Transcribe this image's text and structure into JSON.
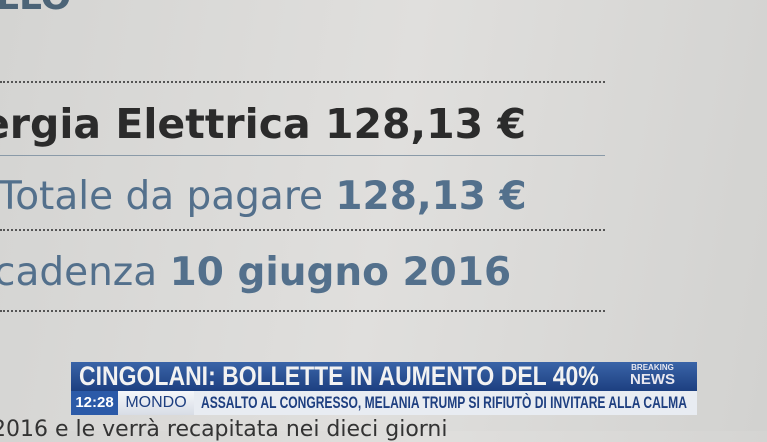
{
  "document": {
    "top_fragment": "LLO",
    "line1": {
      "label": "ergia Elettrica",
      "amount": "128,13 €"
    },
    "line2": {
      "label": "Totale da pagare",
      "amount": "128,13 €"
    },
    "line3": {
      "label": "cadenza",
      "date": "10 giugno 2016"
    },
    "bottom_fragment": "2016 e le verrà recapitata nei dieci giorni"
  },
  "ticker": {
    "headline": "CINGOLANI: BOLLETTE IN AUMENTO DEL 40%",
    "badge_top": "BREAKING",
    "badge_bottom": "NEWS",
    "time": "12:28",
    "category": "MONDO",
    "news": "ASSALTO AL CONGRESSO, MELANIA TRUMP SI RIFIUTÒ DI INVITARE ALLA CALMA",
    "colors": {
      "bar": "#2b5aa8",
      "text_dark": "#1e3f80"
    }
  }
}
